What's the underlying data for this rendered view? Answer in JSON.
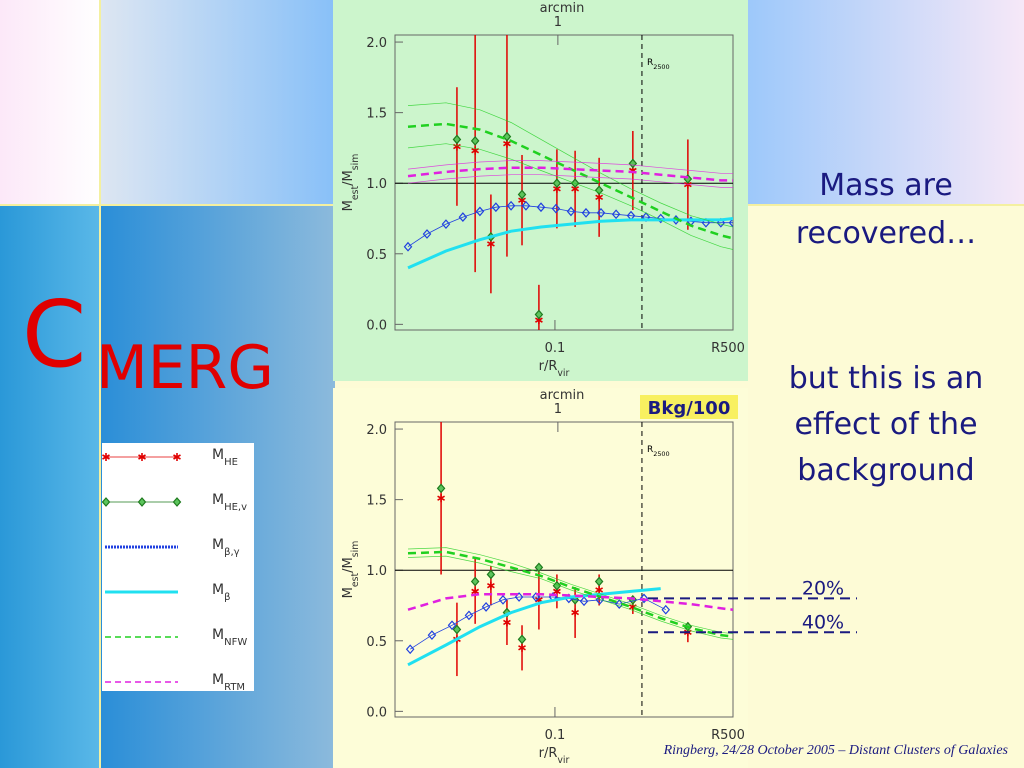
{
  "slide": {
    "title_big": "C",
    "title_rest": "MERG",
    "text1": [
      "Mass are",
      "recovered…"
    ],
    "text2": [
      "but this is an",
      "effect of the",
      "background"
    ],
    "footer": "Ringberg, 24/28 October 2005 – Distant Clusters of Galaxies"
  },
  "chart_data": [
    {
      "type": "line",
      "xscale": "log",
      "xlim": [
        0.02,
        0.6
      ],
      "xticks": [
        0.1,
        {
          "value": 0.6,
          "label": "R500"
        }
      ],
      "ylim": [
        -0.04,
        2.05
      ],
      "yticks": [
        {
          "value": 0,
          "label": "0.0"
        },
        0.5,
        {
          "value": 1,
          "label": "1.0"
        },
        1.5,
        {
          "value": 2,
          "label": "2.0"
        }
      ],
      "xlabel": [
        {
          "text": "r/R"
        },
        {
          "text": "vir",
          "sub": true
        }
      ],
      "ylabel": [
        {
          "text": "M"
        },
        {
          "text": "est",
          "sub": true
        },
        {
          "text": "/M"
        },
        {
          "text": "sim",
          "sub": true
        }
      ],
      "top_axis": {
        "label": "arcmin",
        "ticks": [
          {
            "value": 0.103,
            "label": "1"
          }
        ]
      },
      "hlines": [
        1
      ],
      "vlines": [
        {
          "x": 0.24,
          "label": [
            {
              "text": "R"
            },
            {
              "text": "2500",
              "sub": true
            }
          ]
        }
      ],
      "series": [
        {
          "name": "M",
          "name_sub": "HE",
          "color": "#e00000",
          "marker": "asterisk",
          "line": "none",
          "x": [
            0.0373,
            0.0448,
            0.0525,
            0.0617,
            0.0718,
            0.0851,
            0.102,
            0.1225,
            0.156,
            0.219,
            0.381
          ],
          "values": [
            1.26,
            1.23,
            0.57,
            1.28,
            0.88,
            0.03,
            0.96,
            0.96,
            0.9,
            1.09,
            0.99
          ],
          "errors": [
            0.42,
            0.86,
            0.35,
            0.8,
            0.32,
            0.25,
            0.28,
            0.27,
            0.28,
            0.28,
            0.32
          ]
        },
        {
          "name": "M",
          "name_sub": "HE,v",
          "color": "#1e7a1e",
          "marker": "diamond",
          "line": "none",
          "x": [
            0.0373,
            0.0448,
            0.0525,
            0.0617,
            0.0718,
            0.0851,
            0.102,
            0.1225,
            0.156,
            0.219,
            0.381
          ],
          "values": [
            1.31,
            1.3,
            0.62,
            1.33,
            0.92,
            0.07,
            1.0,
            1.0,
            0.95,
            1.14,
            1.03
          ]
        },
        {
          "name": "M",
          "name_sub": "β,γ",
          "color": "#2040e0",
          "marker": "diamond",
          "line": "solid",
          "x": [
            0.0228,
            0.0276,
            0.0334,
            0.0396,
            0.047,
            0.0552,
            0.0643,
            0.0747,
            0.0869,
            0.101,
            0.1175,
            0.1367,
            0.159,
            0.185,
            0.215,
            0.25,
            0.29,
            0.338,
            0.393,
            0.457,
            0.531,
            0.6
          ],
          "values": [
            0.55,
            0.64,
            0.71,
            0.76,
            0.8,
            0.83,
            0.84,
            0.84,
            0.83,
            0.82,
            0.8,
            0.79,
            0.79,
            0.78,
            0.77,
            0.76,
            0.75,
            0.74,
            0.73,
            0.72,
            0.72,
            0.72
          ]
        },
        {
          "name": "M",
          "name_sub": "β",
          "color": "#20e0f0",
          "marker": "none",
          "line": "thick",
          "x": [
            0.0228,
            0.0334,
            0.047,
            0.0643,
            0.0869,
            0.1175,
            0.159,
            0.215,
            0.29,
            0.393,
            0.531,
            0.6
          ],
          "values": [
            0.4,
            0.52,
            0.6,
            0.66,
            0.69,
            0.71,
            0.73,
            0.74,
            0.74,
            0.74,
            0.74,
            0.75
          ]
        },
        {
          "name": "M",
          "name_sub": "NFW",
          "color": "#20d020",
          "marker": "none",
          "line": "dashed",
          "x": [
            0.0228,
            0.0334,
            0.047,
            0.0643,
            0.0869,
            0.1175,
            0.159,
            0.215,
            0.29,
            0.393,
            0.531,
            0.6
          ],
          "values": [
            1.4,
            1.42,
            1.38,
            1.3,
            1.2,
            1.1,
            1.0,
            0.9,
            0.8,
            0.7,
            0.63,
            0.61
          ],
          "band_upper": [
            1.55,
            1.57,
            1.52,
            1.43,
            1.31,
            1.19,
            1.07,
            0.96,
            0.86,
            0.77,
            0.71,
            0.69
          ],
          "band_lower": [
            1.25,
            1.28,
            1.24,
            1.17,
            1.09,
            1.01,
            0.93,
            0.84,
            0.74,
            0.63,
            0.55,
            0.53
          ]
        },
        {
          "name": "M",
          "name_sub": "RTM",
          "color": "#e020e0",
          "marker": "none",
          "line": "dashed",
          "x": [
            0.0228,
            0.0334,
            0.047,
            0.0643,
            0.0869,
            0.1175,
            0.159,
            0.215,
            0.29,
            0.393,
            0.531,
            0.6
          ],
          "values": [
            1.05,
            1.08,
            1.1,
            1.11,
            1.11,
            1.1,
            1.09,
            1.08,
            1.06,
            1.04,
            1.02,
            1.02
          ],
          "band_upper": [
            1.1,
            1.13,
            1.15,
            1.16,
            1.16,
            1.15,
            1.14,
            1.13,
            1.11,
            1.09,
            1.07,
            1.07
          ],
          "band_lower": [
            1.0,
            1.03,
            1.05,
            1.06,
            1.06,
            1.05,
            1.04,
            1.03,
            1.01,
            0.99,
            0.97,
            0.97
          ]
        }
      ]
    },
    {
      "type": "line",
      "xscale": "log",
      "xlim": [
        0.02,
        0.6
      ],
      "xticks": [
        0.1,
        {
          "value": 0.6,
          "label": "R500"
        }
      ],
      "ylim": [
        -0.04,
        2.05
      ],
      "yticks": [
        {
          "value": 0,
          "label": "0.0"
        },
        0.5,
        {
          "value": 1,
          "label": "1.0"
        },
        1.5,
        {
          "value": 2,
          "label": "2.0"
        }
      ],
      "xlabel": [
        {
          "text": "r/R"
        },
        {
          "text": "vir",
          "sub": true
        }
      ],
      "ylabel": [
        {
          "text": "M"
        },
        {
          "text": "est",
          "sub": true
        },
        {
          "text": "/M"
        },
        {
          "text": "sim",
          "sub": true
        }
      ],
      "top_axis": {
        "label": "arcmin",
        "ticks": [
          {
            "value": 0.103,
            "label": "1"
          }
        ]
      },
      "hlines": [
        1
      ],
      "vlines": [
        {
          "x": 0.24,
          "label": [
            {
              "text": "R"
            },
            {
              "text": "2500",
              "sub": true
            }
          ]
        }
      ],
      "tag": "Bkg/100",
      "level_annotations": [
        {
          "text": "20%",
          "y": 0.8
        },
        {
          "text": "40%",
          "y": 0.56
        }
      ],
      "series": [
        {
          "color": "#e00000",
          "marker": "asterisk",
          "line": "none",
          "x": [
            0.0318,
            0.0373,
            0.0448,
            0.0525,
            0.0617,
            0.0718,
            0.0851,
            0.102,
            0.1225,
            0.156,
            0.219,
            0.381
          ],
          "values": [
            1.51,
            0.51,
            0.85,
            0.89,
            0.63,
            0.45,
            0.79,
            0.85,
            0.7,
            0.86,
            0.74,
            0.56
          ],
          "errors": [
            0.54,
            0.26,
            0.23,
            0.14,
            0.16,
            0.16,
            0.21,
            0.12,
            0.18,
            0.11,
            0.05,
            0.07
          ]
        },
        {
          "color": "#1e7a1e",
          "marker": "diamond",
          "line": "none",
          "x": [
            0.0318,
            0.0373,
            0.0448,
            0.0525,
            0.0617,
            0.0718,
            0.0851,
            0.102,
            0.1225,
            0.156,
            0.219,
            0.381
          ],
          "values": [
            1.58,
            0.58,
            0.92,
            0.97,
            0.7,
            0.51,
            1.02,
            0.89,
            0.79,
            0.92,
            0.79,
            0.6
          ]
        },
        {
          "color": "#2040e0",
          "marker": "diamond",
          "line": "solid",
          "x": [
            0.0233,
            0.029,
            0.0355,
            0.0421,
            0.05,
            0.0593,
            0.0697,
            0.0826,
            0.098,
            0.115,
            0.134,
            0.157,
            0.191,
            0.245,
            0.305
          ],
          "values": [
            0.44,
            0.54,
            0.61,
            0.68,
            0.74,
            0.79,
            0.81,
            0.81,
            0.81,
            0.8,
            0.78,
            0.79,
            0.76,
            0.8,
            0.72
          ]
        },
        {
          "color": "#20e0f0",
          "marker": "none",
          "line": "thick",
          "x": [
            0.0228,
            0.0334,
            0.047,
            0.0643,
            0.0869,
            0.1175,
            0.159,
            0.215,
            0.29,
            0.393,
            0.531,
            0.6
          ],
          "values": [
            0.33,
            0.47,
            0.6,
            0.7,
            0.77,
            0.81,
            0.83,
            0.85,
            0.87,
            null,
            null,
            null
          ]
        },
        {
          "color": "#20d020",
          "marker": "none",
          "line": "dashed",
          "x": [
            0.0228,
            0.0334,
            0.047,
            0.0643,
            0.0869,
            0.1175,
            0.159,
            0.215,
            0.29,
            0.393,
            0.531,
            0.6
          ],
          "values": [
            1.12,
            1.13,
            1.08,
            1.02,
            0.96,
            0.88,
            0.81,
            0.74,
            0.66,
            0.59,
            0.54,
            0.53
          ],
          "band_upper": [
            1.15,
            1.16,
            1.11,
            1.05,
            0.98,
            0.9,
            0.83,
            0.76,
            0.68,
            0.61,
            0.56,
            0.55
          ],
          "band_lower": [
            1.09,
            1.1,
            1.05,
            0.99,
            0.94,
            0.86,
            0.79,
            0.72,
            0.64,
            0.57,
            0.52,
            0.51
          ]
        },
        {
          "color": "#e020e0",
          "marker": "none",
          "line": "dashed",
          "x": [
            0.0228,
            0.0334,
            0.047,
            0.0643,
            0.0869,
            0.1175,
            0.159,
            0.215,
            0.29,
            0.393,
            0.531,
            0.6
          ],
          "values": [
            0.72,
            0.8,
            0.83,
            0.83,
            0.83,
            0.82,
            0.81,
            0.8,
            0.78,
            0.76,
            0.73,
            0.72
          ]
        }
      ]
    }
  ]
}
